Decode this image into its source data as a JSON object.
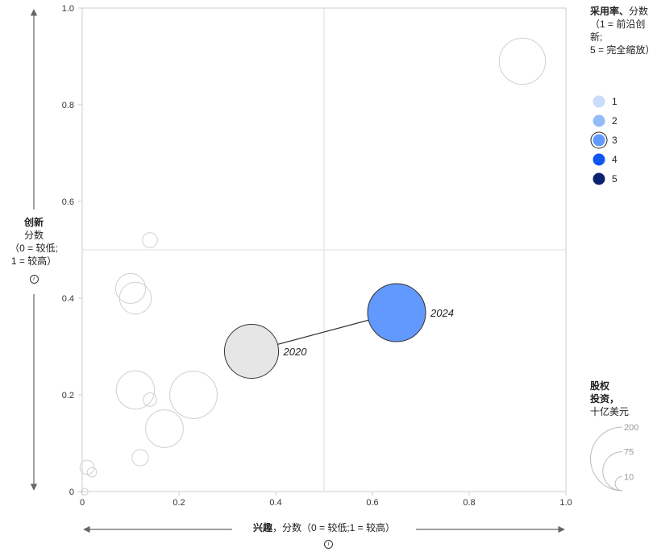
{
  "chart_data": {
    "type": "scatter",
    "xlabel": {
      "bold": "兴趣",
      "rest": "，分数（0 = 较低;1 = 较高）"
    },
    "ylabel": {
      "bold": "创新",
      "line1": "分数",
      "line2": "（0 = 较低;",
      "line3": "1 = 较高）"
    },
    "xlim": [
      0,
      1
    ],
    "ylim": [
      0,
      1
    ],
    "x_ticks": [
      "0",
      "0.2",
      "0.4",
      "0.6",
      "0.8",
      "1.0"
    ],
    "y_ticks": [
      "0",
      "0.2",
      "0.4",
      "0.6",
      "0.8",
      "1.0"
    ],
    "quadrant_lines": {
      "x": 0.5,
      "y": 0.5
    },
    "highlight": {
      "from": {
        "x": 0.35,
        "y": 0.29,
        "label": "2020",
        "investment": 130,
        "fill": "#e6e6e6"
      },
      "to": {
        "x": 0.65,
        "y": 0.37,
        "label": "2024",
        "investment": 150,
        "adoption": 3,
        "fill": "#6199ff"
      }
    },
    "background_points": [
      {
        "x": 0.91,
        "y": 0.89,
        "investment": 95
      },
      {
        "x": 0.14,
        "y": 0.52,
        "investment": 10
      },
      {
        "x": 0.1,
        "y": 0.42,
        "investment": 40
      },
      {
        "x": 0.11,
        "y": 0.4,
        "investment": 45
      },
      {
        "x": 0.11,
        "y": 0.21,
        "investment": 65
      },
      {
        "x": 0.23,
        "y": 0.2,
        "investment": 100
      },
      {
        "x": 0.14,
        "y": 0.19,
        "investment": 8
      },
      {
        "x": 0.17,
        "y": 0.13,
        "investment": 63
      },
      {
        "x": 0.12,
        "y": 0.07,
        "investment": 12
      },
      {
        "x": 0.01,
        "y": 0.05,
        "investment": 9
      },
      {
        "x": 0.02,
        "y": 0.04,
        "investment": 4
      },
      {
        "x": 0.005,
        "y": 0.0,
        "investment": 2
      }
    ],
    "adoption_legend": {
      "title_bold": "采用率、",
      "title_rest": "分数",
      "subtitle": "（1 = 前沿创新;",
      "subtitle2": "5 = 完全缩放）",
      "items": [
        {
          "label": "1",
          "color": "#c9dcfb"
        },
        {
          "label": "2",
          "color": "#94bbf9"
        },
        {
          "label": "3",
          "color": "#6199ff"
        },
        {
          "label": "4",
          "color": "#0f55f2"
        },
        {
          "label": "5",
          "color": "#0b2270"
        }
      ],
      "selected": "3"
    },
    "size_legend": {
      "title_bold1": "股权",
      "title_bold2": "投资，",
      "unit": "十亿美元",
      "values": [
        200,
        75,
        10
      ],
      "labels": [
        "200",
        "75",
        "10"
      ]
    }
  },
  "icons": {
    "info": "info-icon"
  },
  "info_glyph": "i",
  "colors": {
    "grid": "#dddddd",
    "axis": "#cccccc",
    "bubble_stroke": "#cfcfcf",
    "dark_stroke": "#333333"
  }
}
